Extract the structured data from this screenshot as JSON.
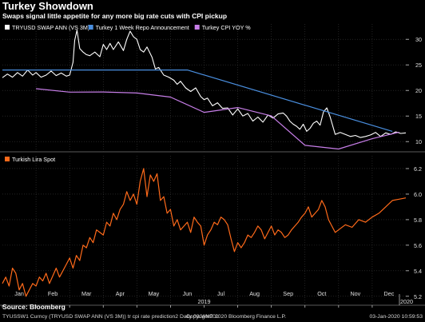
{
  "header": {
    "title": "Turkey Showdown",
    "subtitle": "Swaps signal little appetite for any more big rate cuts with CPI pickup"
  },
  "footer": {
    "source": "Source: Bloomberg",
    "ticker": "TYUSSW1 Curncy (TRYUSD SWAP ANN (VS 3M)) tr cpi rate prediction2  Daily 03JAN201",
    "copyright": "Copyright© 2020 Bloomberg Finance L.P.",
    "timestamp": "03-Jan-2020 10:59:53"
  },
  "colors": {
    "background": "#000000",
    "swap": "#ffffff",
    "repo": "#4a8fe0",
    "cpi": "#c77ee8",
    "lira": "#ff6a1a",
    "grid": "#3a3a3a"
  },
  "chart_data": [
    {
      "type": "line",
      "title": "",
      "ylim": [
        8,
        33
      ],
      "yticks": [
        10,
        15,
        20,
        25,
        30
      ],
      "grid": true,
      "legend_position": "top-left",
      "x_axis": {
        "months": [
          "Jan",
          "Feb",
          "Mar",
          "Apr",
          "May",
          "Jun",
          "Jul",
          "Aug",
          "Sep",
          "Oct",
          "Nov",
          "Dec"
        ],
        "year_label": "2019",
        "next_year_label": "2020"
      },
      "series": [
        {
          "name": "TRYUSD SWAP ANN (VS 3M)",
          "color_key": "swap",
          "x": [
            0,
            0.15,
            0.3,
            0.45,
            0.6,
            0.75,
            0.9,
            1.0,
            1.15,
            1.3,
            1.45,
            1.6,
            1.75,
            1.9,
            2.0,
            2.1,
            2.15,
            2.22,
            2.3,
            2.4,
            2.5,
            2.6,
            2.75,
            2.9,
            3.0,
            3.1,
            3.2,
            3.3,
            3.45,
            3.6,
            3.7,
            3.8,
            3.9,
            4.0,
            4.1,
            4.2,
            4.3,
            4.45,
            4.55,
            4.65,
            4.8,
            4.95,
            5.1,
            5.2,
            5.3,
            5.45,
            5.6,
            5.75,
            5.9,
            6.0,
            6.1,
            6.25,
            6.4,
            6.55,
            6.7,
            6.85,
            7.0,
            7.15,
            7.3,
            7.45,
            7.6,
            7.75,
            7.9,
            8.05,
            8.2,
            8.35,
            8.45,
            8.55,
            8.65,
            8.75,
            8.85,
            8.95,
            9.05,
            9.15,
            9.25,
            9.35,
            9.45,
            9.55,
            9.65,
            9.75,
            9.9,
            10.05,
            10.2,
            10.35,
            10.5,
            10.65,
            10.8,
            10.95,
            11.1,
            11.25,
            11.4,
            11.55,
            11.7,
            11.85,
            12.0
          ],
          "values": [
            22.5,
            23.2,
            22.6,
            23.5,
            22.8,
            24.0,
            23.0,
            23.5,
            22.6,
            23.0,
            23.8,
            22.9,
            23.4,
            22.8,
            23.0,
            25.5,
            29.8,
            31.8,
            28.2,
            27.5,
            27.0,
            26.8,
            27.5,
            26.6,
            29.0,
            28.0,
            29.2,
            28.0,
            29.5,
            27.8,
            30.0,
            31.6,
            30.5,
            30.0,
            28.0,
            27.5,
            28.5,
            26.5,
            24.2,
            24.5,
            23.0,
            22.6,
            22.0,
            21.2,
            21.8,
            20.5,
            19.8,
            20.5,
            18.8,
            18.2,
            18.5,
            17.0,
            17.6,
            16.5,
            16.6,
            15.2,
            16.4,
            15.0,
            15.5,
            14.0,
            14.8,
            13.8,
            15.2,
            14.6,
            15.4,
            15.6,
            15.0,
            14.0,
            13.4,
            13.0,
            12.4,
            13.4,
            12.0,
            12.6,
            13.6,
            14.0,
            13.2,
            15.8,
            16.6,
            14.8,
            11.4,
            11.8,
            11.4,
            11.0,
            11.2,
            10.8,
            11.0,
            11.3,
            11.8,
            11.0,
            11.7,
            11.4,
            11.9,
            11.6,
            11.7
          ]
        },
        {
          "name": "Turkey 1 Week Repo Announcement",
          "color_key": "repo",
          "x": [
            0,
            5.5,
            5.5,
            11.6
          ],
          "values": [
            24.0,
            24.0,
            24.0,
            12.0
          ]
        },
        {
          "name": "Turkey CPI YOY %",
          "color_key": "cpi",
          "x": [
            1.0,
            2.0,
            3.0,
            4.0,
            5.0,
            6.0,
            7.0,
            8.0,
            9.0,
            10.0,
            11.0,
            11.8
          ],
          "values": [
            20.35,
            19.67,
            19.71,
            19.5,
            18.71,
            15.72,
            16.65,
            15.01,
            9.26,
            8.55,
            10.56,
            11.84
          ]
        }
      ]
    },
    {
      "type": "line",
      "title": "",
      "ylim": [
        5.13,
        6.3
      ],
      "yticks": [
        5.2,
        5.4,
        5.6,
        5.8,
        6.0,
        6.2
      ],
      "grid": true,
      "legend_position": "top-left",
      "series": [
        {
          "name": "Turkish Lira Spot",
          "color_key": "lira",
          "x": [
            0,
            0.1,
            0.2,
            0.3,
            0.4,
            0.5,
            0.6,
            0.7,
            0.8,
            0.9,
            1.0,
            1.1,
            1.2,
            1.3,
            1.4,
            1.5,
            1.6,
            1.7,
            1.8,
            1.9,
            2.0,
            2.1,
            2.2,
            2.3,
            2.4,
            2.5,
            2.6,
            2.7,
            2.8,
            2.9,
            3.0,
            3.1,
            3.2,
            3.3,
            3.4,
            3.5,
            3.6,
            3.7,
            3.8,
            3.9,
            4.0,
            4.1,
            4.2,
            4.3,
            4.4,
            4.5,
            4.6,
            4.7,
            4.8,
            4.9,
            5.0,
            5.1,
            5.2,
            5.3,
            5.4,
            5.5,
            5.6,
            5.7,
            5.8,
            5.9,
            6.0,
            6.1,
            6.2,
            6.3,
            6.4,
            6.5,
            6.6,
            6.7,
            6.8,
            6.9,
            7.0,
            7.1,
            7.2,
            7.3,
            7.4,
            7.5,
            7.6,
            7.7,
            7.8,
            7.9,
            8.0,
            8.1,
            8.2,
            8.3,
            8.4,
            8.5,
            8.6,
            8.7,
            8.8,
            8.9,
            9.0,
            9.1,
            9.2,
            9.3,
            9.4,
            9.5,
            9.6,
            9.7,
            9.8,
            9.9,
            10.0,
            10.2,
            10.4,
            10.6,
            10.8,
            11.0,
            11.2,
            11.4,
            11.6,
            11.8,
            12.0
          ],
          "values": [
            5.3,
            5.35,
            5.28,
            5.42,
            5.38,
            5.25,
            5.3,
            5.2,
            5.25,
            5.3,
            5.28,
            5.35,
            5.32,
            5.38,
            5.3,
            5.36,
            5.42,
            5.35,
            5.4,
            5.45,
            5.5,
            5.42,
            5.52,
            5.48,
            5.6,
            5.58,
            5.66,
            5.62,
            5.72,
            5.7,
            5.68,
            5.78,
            5.75,
            5.85,
            5.8,
            5.88,
            5.92,
            6.02,
            5.95,
            6.0,
            5.92,
            6.1,
            6.2,
            5.98,
            6.15,
            6.1,
            6.16,
            5.95,
            5.98,
            5.85,
            5.88,
            5.75,
            5.8,
            5.72,
            5.75,
            5.78,
            5.7,
            5.82,
            5.78,
            5.75,
            5.6,
            5.68,
            5.72,
            5.78,
            5.76,
            5.82,
            5.8,
            5.76,
            5.65,
            5.55,
            5.62,
            5.58,
            5.62,
            5.68,
            5.66,
            5.7,
            5.75,
            5.72,
            5.65,
            5.7,
            5.75,
            5.68,
            5.72,
            5.7,
            5.66,
            5.68,
            5.72,
            5.75,
            5.78,
            5.82,
            5.85,
            5.9,
            5.82,
            5.85,
            5.88,
            5.95,
            5.9,
            5.8,
            5.75,
            5.7,
            5.72,
            5.76,
            5.74,
            5.8,
            5.78,
            5.82,
            5.85,
            5.9,
            5.95,
            5.96,
            5.97
          ]
        }
      ]
    }
  ]
}
